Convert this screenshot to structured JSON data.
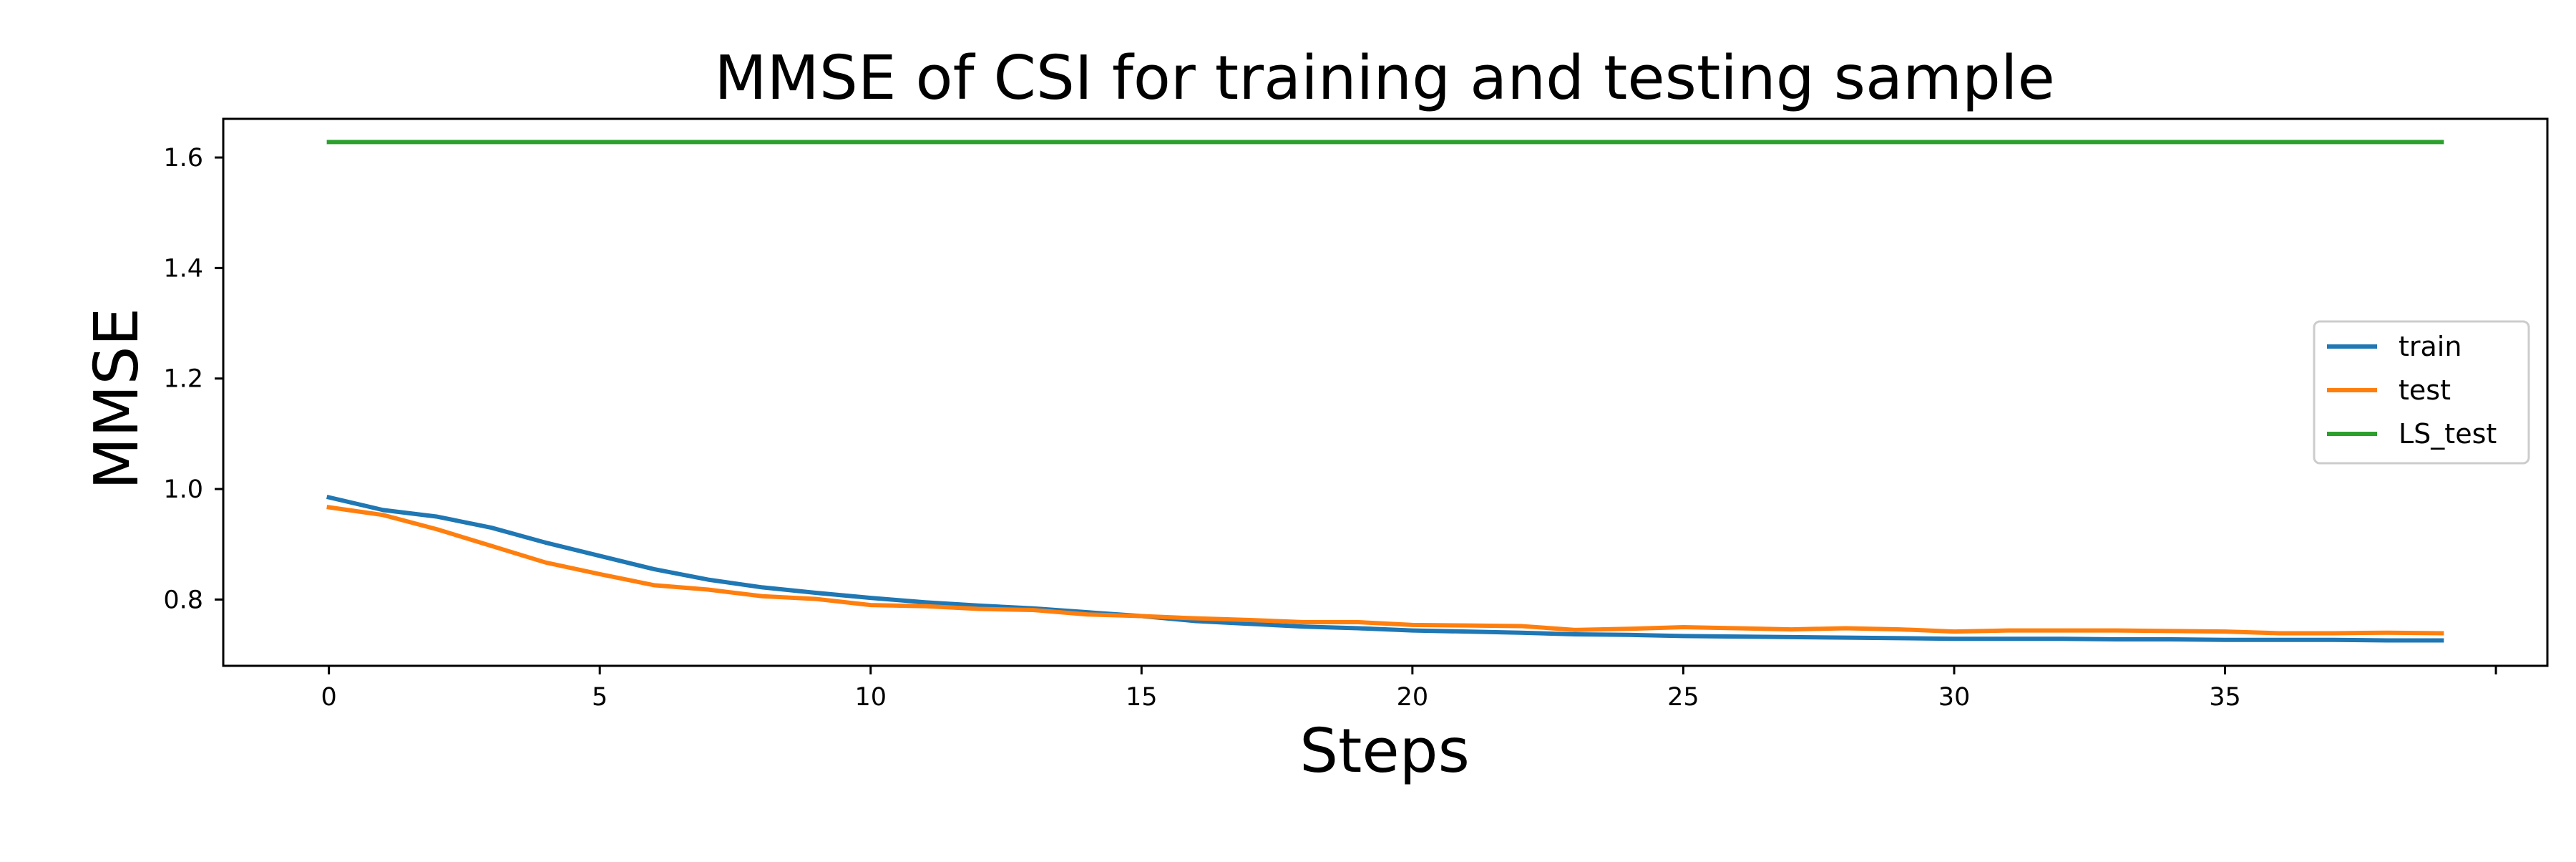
{
  "chart_data": {
    "type": "line",
    "title": "MMSE of CSI for training and testing sample",
    "xlabel": "Steps",
    "ylabel": "MMSE",
    "xlim": [
      -1.95,
      40.95
    ],
    "ylim": [
      0.68,
      1.67
    ],
    "xticks": [
      {
        "value": 0,
        "label": "0"
      },
      {
        "value": 5,
        "label": "5"
      },
      {
        "value": 10,
        "label": "10"
      },
      {
        "value": 15,
        "label": "15"
      },
      {
        "value": 20,
        "label": "20"
      },
      {
        "value": 25,
        "label": "25"
      },
      {
        "value": 30,
        "label": "30"
      },
      {
        "value": 35,
        "label": "35"
      },
      {
        "value": 40,
        "label": ""
      }
    ],
    "yticks": [
      {
        "value": 0.8,
        "label": "0.8"
      },
      {
        "value": 1.0,
        "label": "1.0"
      },
      {
        "value": 1.2,
        "label": "1.2"
      },
      {
        "value": 1.4,
        "label": "1.4"
      },
      {
        "value": 1.6,
        "label": "1.6"
      }
    ],
    "grid": false,
    "legend_position": "center-right",
    "x": [
      0,
      1,
      2,
      3,
      4,
      5,
      6,
      7,
      8,
      9,
      10,
      11,
      12,
      13,
      14,
      15,
      16,
      17,
      18,
      19,
      20,
      21,
      22,
      23,
      24,
      25,
      26,
      27,
      28,
      29,
      30,
      31,
      32,
      33,
      34,
      35,
      36,
      37,
      38,
      39
    ],
    "series": [
      {
        "name": "train",
        "color": "#1f77b4",
        "values": [
          0.985,
          0.962,
          0.95,
          0.93,
          0.903,
          0.879,
          0.855,
          0.836,
          0.822,
          0.812,
          0.803,
          0.795,
          0.789,
          0.784,
          0.777,
          0.77,
          0.761,
          0.756,
          0.751,
          0.748,
          0.744,
          0.742,
          0.74,
          0.737,
          0.736,
          0.734,
          0.733,
          0.732,
          0.731,
          0.73,
          0.729,
          0.729,
          0.729,
          0.728,
          0.728,
          0.727,
          0.727,
          0.727,
          0.726,
          0.726
        ]
      },
      {
        "name": "test",
        "color": "#ff7f0e",
        "values": [
          0.967,
          0.953,
          0.927,
          0.897,
          0.867,
          0.846,
          0.826,
          0.818,
          0.806,
          0.801,
          0.79,
          0.788,
          0.783,
          0.781,
          0.773,
          0.77,
          0.766,
          0.763,
          0.759,
          0.759,
          0.754,
          0.753,
          0.752,
          0.745,
          0.747,
          0.75,
          0.748,
          0.746,
          0.748,
          0.746,
          0.742,
          0.744,
          0.744,
          0.744,
          0.743,
          0.742,
          0.739,
          0.739,
          0.74,
          0.739
        ]
      },
      {
        "name": "LS_test",
        "color": "#2ca02c",
        "values": [
          1.628,
          1.628,
          1.628,
          1.628,
          1.628,
          1.628,
          1.628,
          1.628,
          1.628,
          1.628,
          1.628,
          1.628,
          1.628,
          1.628,
          1.628,
          1.628,
          1.628,
          1.628,
          1.628,
          1.628,
          1.628,
          1.628,
          1.628,
          1.628,
          1.628,
          1.628,
          1.628,
          1.628,
          1.628,
          1.628,
          1.628,
          1.628,
          1.628,
          1.628,
          1.628,
          1.628,
          1.628,
          1.628,
          1.628,
          1.628
        ]
      }
    ]
  }
}
